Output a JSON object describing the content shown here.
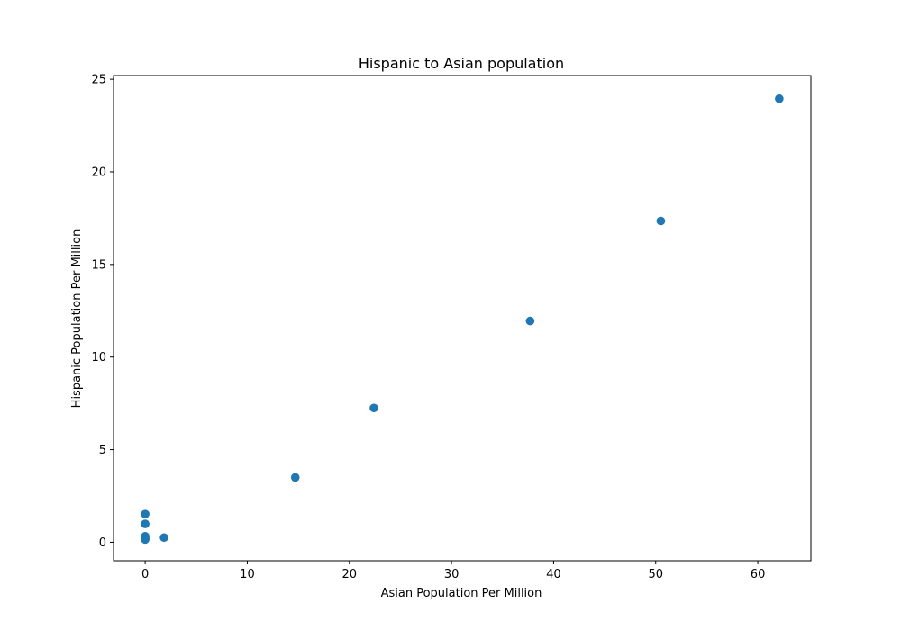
{
  "chart_data": {
    "type": "scatter",
    "title": "Hispanic to Asian population",
    "xlabel": "Asian Population Per Million",
    "ylabel": "Hispanic Population Per Million",
    "xlim": [
      -3.1,
      65.2
    ],
    "ylim": [
      -1.0,
      25.2
    ],
    "xticks": [
      0,
      10,
      20,
      30,
      40,
      50,
      60
    ],
    "yticks": [
      0,
      5,
      10,
      15,
      20,
      25
    ],
    "grid": false,
    "marker_color": "#1f77b4",
    "series": [
      {
        "points": [
          {
            "x": 0.0,
            "y": 1.52
          },
          {
            "x": 0.0,
            "y": 0.99
          },
          {
            "x": 0.0,
            "y": 0.32
          },
          {
            "x": 0.0,
            "y": 0.2
          },
          {
            "x": 0.0,
            "y": 0.15
          },
          {
            "x": 1.85,
            "y": 0.25
          },
          {
            "x": 14.7,
            "y": 3.5
          },
          {
            "x": 22.4,
            "y": 7.25
          },
          {
            "x": 37.7,
            "y": 11.95
          },
          {
            "x": 50.5,
            "y": 17.35
          },
          {
            "x": 62.1,
            "y": 23.95
          }
        ]
      }
    ]
  }
}
